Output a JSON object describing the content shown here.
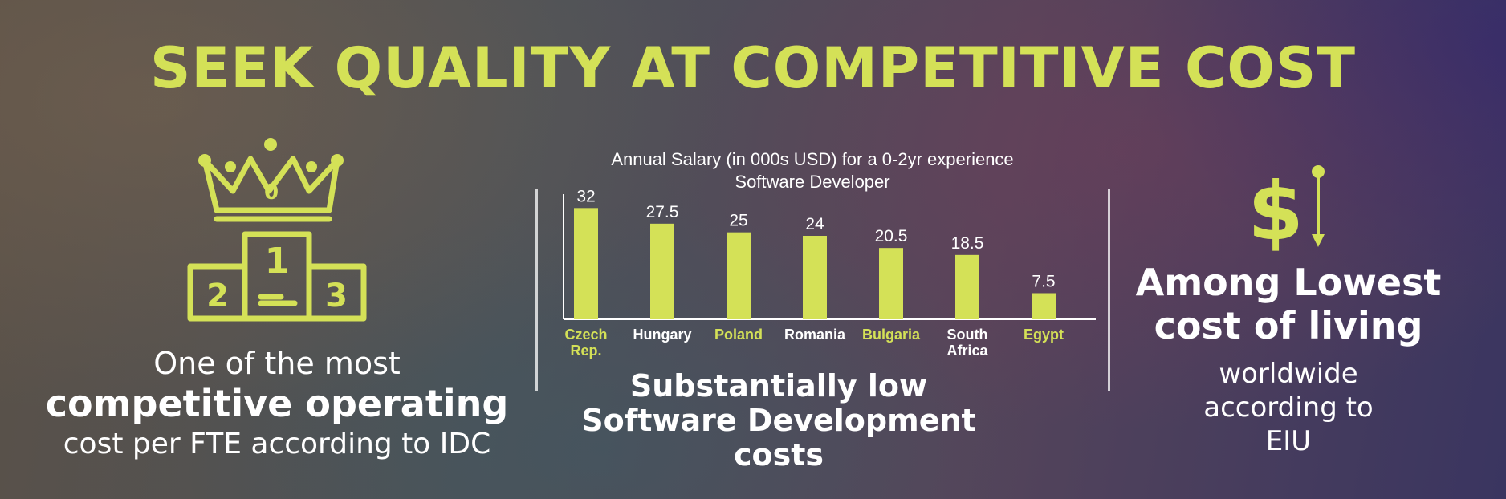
{
  "title": "SEEK QUALITY AT COMPETITIVE COST",
  "left": {
    "line1": "One of the most",
    "line2": "competitive operating",
    "line3": "cost per FTE according to IDC",
    "podium_labels": [
      "1",
      "2",
      "3"
    ],
    "crown_label": "0"
  },
  "chart_data": {
    "type": "bar",
    "title": "Annual Salary (in 000s USD) for a 0-2yr experience Software Developer",
    "title_lines": [
      "Annual Salary (in 000s USD) for a 0-2yr experience",
      "Software Developer"
    ],
    "categories": [
      "Czech Rep.",
      "Hungary",
      "Poland",
      "Romania",
      "Bulgaria",
      "South Africa",
      "Egypt"
    ],
    "category_lines": [
      [
        "Czech",
        "Rep."
      ],
      [
        "Hungary"
      ],
      [
        "Poland"
      ],
      [
        "Romania"
      ],
      [
        "Bulgaria"
      ],
      [
        "South",
        "Africa"
      ],
      [
        "Egypt"
      ]
    ],
    "values": [
      32,
      27.5,
      25,
      24,
      20.5,
      18.5,
      7.5
    ],
    "value_labels": [
      "32",
      "27.5",
      "25",
      "24",
      "20.5",
      "18.5",
      "7.5"
    ],
    "highlighted": [
      true,
      false,
      true,
      false,
      true,
      false,
      true
    ],
    "bar_color": "#d4e157",
    "highlight_label_color": "#d4e157",
    "label_color": "#ffffff",
    "ylim": [
      0,
      36
    ],
    "grid": false,
    "legend": "none"
  },
  "middle_caption": [
    "Substantially low",
    "Software Development",
    "costs"
  ],
  "right": {
    "dollar_symbol": "$",
    "title_lines": [
      "Among Lowest",
      "cost of living"
    ],
    "sub_lines": [
      "worldwide",
      "according to",
      "EIU"
    ]
  },
  "colors": {
    "accent": "#d4e157",
    "text": "#ffffff"
  }
}
